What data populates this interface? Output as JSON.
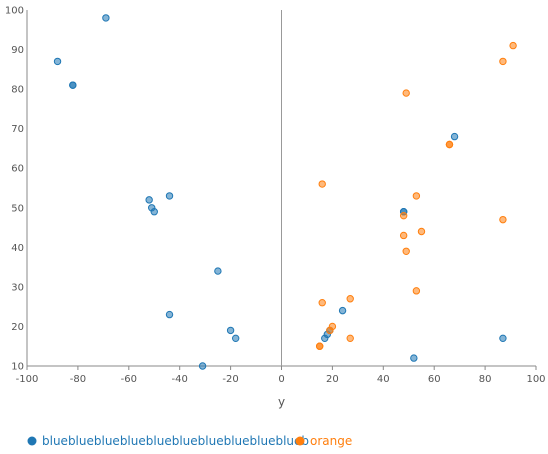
{
  "chart_data": {
    "type": "scatter",
    "title": "",
    "xlabel": "y",
    "ylabel": "",
    "xlim": [
      -100,
      100
    ],
    "ylim": [
      10,
      100
    ],
    "x_ticks": [
      -100,
      -80,
      -60,
      -40,
      -20,
      0,
      20,
      40,
      60,
      80,
      100
    ],
    "y_ticks": [
      10,
      20,
      30,
      40,
      50,
      60,
      70,
      80,
      90,
      100
    ],
    "grid": false,
    "legend_position": "bottom-left",
    "series": [
      {
        "name": "blueblueblueblueblueblueblueblueblueblueb",
        "color": "#1f77b4",
        "points": [
          {
            "x": -69,
            "y": 98
          },
          {
            "x": -88,
            "y": 87
          },
          {
            "x": -82,
            "y": 81
          },
          {
            "x": -82,
            "y": 81
          },
          {
            "x": -52,
            "y": 52
          },
          {
            "x": -51,
            "y": 50
          },
          {
            "x": -50,
            "y": 49
          },
          {
            "x": -44,
            "y": 53
          },
          {
            "x": -25,
            "y": 34
          },
          {
            "x": -44,
            "y": 23
          },
          {
            "x": -20,
            "y": 19
          },
          {
            "x": -18,
            "y": 17
          },
          {
            "x": -31,
            "y": 10
          },
          {
            "x": 68,
            "y": 68
          },
          {
            "x": 48,
            "y": 49
          },
          {
            "x": 48,
            "y": 49
          },
          {
            "x": 24,
            "y": 24
          },
          {
            "x": 19,
            "y": 19
          },
          {
            "x": 18,
            "y": 18
          },
          {
            "x": 17,
            "y": 17
          },
          {
            "x": 87,
            "y": 17
          },
          {
            "x": 52,
            "y": 12
          }
        ]
      },
      {
        "name": "orange",
        "color": "#ff7f0e",
        "points": [
          {
            "x": 91,
            "y": 91
          },
          {
            "x": 87,
            "y": 87
          },
          {
            "x": 49,
            "y": 79
          },
          {
            "x": 66,
            "y": 66
          },
          {
            "x": 66,
            "y": 66
          },
          {
            "x": 16,
            "y": 56
          },
          {
            "x": 53,
            "y": 53
          },
          {
            "x": 48,
            "y": 48
          },
          {
            "x": 87,
            "y": 47
          },
          {
            "x": 55,
            "y": 44
          },
          {
            "x": 48,
            "y": 43
          },
          {
            "x": 49,
            "y": 39
          },
          {
            "x": 53,
            "y": 29
          },
          {
            "x": 27,
            "y": 27
          },
          {
            "x": 16,
            "y": 26
          },
          {
            "x": 20,
            "y": 20
          },
          {
            "x": 19,
            "y": 19
          },
          {
            "x": 27,
            "y": 17
          },
          {
            "x": 15,
            "y": 15
          },
          {
            "x": 15,
            "y": 15
          }
        ]
      }
    ]
  }
}
